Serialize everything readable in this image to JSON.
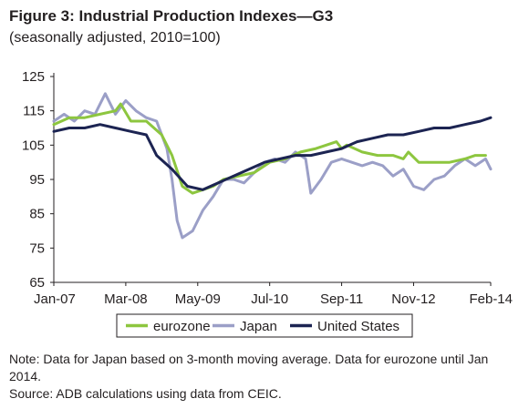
{
  "title": "Figure 3: Industrial Production Indexes—G3",
  "subtitle": "(seasonally adjusted, 2010=100)",
  "notes": [
    "Note: Data for Japan based on 3-month moving average. Data for eurozone until Jan 2014.",
    "Source: ADB calculations using data from CEIC."
  ],
  "colors": {
    "eurozone": "#8dc63f",
    "japan": "#9b9fc7",
    "united_states": "#1c2452",
    "axis": "#231f20"
  },
  "chart_data": {
    "type": "line",
    "x_unit": "month",
    "x_range": [
      "Jan-07",
      "Feb-14"
    ],
    "x_ticks": [
      "Jan-07",
      "Mar-08",
      "May-09",
      "Jul-10",
      "Sep-11",
      "Nov-12",
      "Feb-14"
    ],
    "y_ticks": [
      65,
      75,
      85,
      95,
      105,
      115,
      125
    ],
    "ylim": [
      65,
      125
    ],
    "grid": false,
    "legend_position": "bottom",
    "series": [
      {
        "name": "eurozone",
        "color": "#8dc63f",
        "points": [
          [
            "Jan-07",
            111
          ],
          [
            "Apr-07",
            113
          ],
          [
            "Jul-07",
            113
          ],
          [
            "Oct-07",
            114
          ],
          [
            "Jan-08",
            115
          ],
          [
            "Feb-08",
            117
          ],
          [
            "Apr-08",
            112
          ],
          [
            "Jul-08",
            112
          ],
          [
            "Oct-08",
            108
          ],
          [
            "Dec-08",
            102
          ],
          [
            "Feb-09",
            93
          ],
          [
            "Apr-09",
            91
          ],
          [
            "Jun-09",
            92
          ],
          [
            "Aug-09",
            93
          ],
          [
            "Oct-09",
            95
          ],
          [
            "Jan-10",
            96
          ],
          [
            "Apr-10",
            97
          ],
          [
            "Jul-10",
            100
          ],
          [
            "Oct-10",
            101
          ],
          [
            "Jan-11",
            103
          ],
          [
            "Apr-11",
            104
          ],
          [
            "Jun-11",
            105
          ],
          [
            "Aug-11",
            106
          ],
          [
            "Sep-11",
            104
          ],
          [
            "Oct-11",
            105
          ],
          [
            "Jan-12",
            103
          ],
          [
            "Apr-12",
            102
          ],
          [
            "Jul-12",
            102
          ],
          [
            "Sep-12",
            101
          ],
          [
            "Oct-12",
            103
          ],
          [
            "Dec-12",
            100
          ],
          [
            "Mar-13",
            100
          ],
          [
            "Jun-13",
            100
          ],
          [
            "Sep-13",
            101
          ],
          [
            "Nov-13",
            102
          ],
          [
            "Jan-14",
            102
          ]
        ]
      },
      {
        "name": "Japan",
        "color": "#9b9fc7",
        "points": [
          [
            "Jan-07",
            112
          ],
          [
            "Mar-07",
            114
          ],
          [
            "May-07",
            112
          ],
          [
            "Jul-07",
            115
          ],
          [
            "Sep-07",
            114
          ],
          [
            "Nov-07",
            120
          ],
          [
            "Jan-08",
            114
          ],
          [
            "Mar-08",
            118
          ],
          [
            "May-08",
            115
          ],
          [
            "Jul-08",
            113
          ],
          [
            "Sep-08",
            112
          ],
          [
            "Nov-08",
            104
          ],
          [
            "Dec-08",
            95
          ],
          [
            "Jan-09",
            83
          ],
          [
            "Feb-09",
            78
          ],
          [
            "Apr-09",
            80
          ],
          [
            "Jun-09",
            86
          ],
          [
            "Aug-09",
            90
          ],
          [
            "Oct-09",
            95
          ],
          [
            "Dec-09",
            95
          ],
          [
            "Feb-10",
            94
          ],
          [
            "Apr-10",
            97
          ],
          [
            "Jun-10",
            100
          ],
          [
            "Aug-10",
            101
          ],
          [
            "Oct-10",
            100
          ],
          [
            "Dec-10",
            103
          ],
          [
            "Feb-11",
            101
          ],
          [
            "Mar-11",
            91
          ],
          [
            "May-11",
            95
          ],
          [
            "Jul-11",
            100
          ],
          [
            "Sep-11",
            101
          ],
          [
            "Nov-11",
            100
          ],
          [
            "Jan-12",
            99
          ],
          [
            "Mar-12",
            100
          ],
          [
            "May-12",
            99
          ],
          [
            "Jul-12",
            96
          ],
          [
            "Sep-12",
            98
          ],
          [
            "Nov-12",
            93
          ],
          [
            "Jan-13",
            92
          ],
          [
            "Mar-13",
            95
          ],
          [
            "May-13",
            96
          ],
          [
            "Jul-13",
            99
          ],
          [
            "Sep-13",
            101
          ],
          [
            "Nov-13",
            99
          ],
          [
            "Jan-14",
            101
          ],
          [
            "Feb-14",
            98
          ]
        ]
      },
      {
        "name": "United States",
        "color": "#1c2452",
        "points": [
          [
            "Jan-07",
            109
          ],
          [
            "Apr-07",
            110
          ],
          [
            "Jul-07",
            110
          ],
          [
            "Oct-07",
            111
          ],
          [
            "Jan-08",
            110
          ],
          [
            "Apr-08",
            109
          ],
          [
            "Jul-08",
            108
          ],
          [
            "Sep-08",
            102
          ],
          [
            "Dec-08",
            98
          ],
          [
            "Mar-09",
            93
          ],
          [
            "Jun-09",
            92
          ],
          [
            "Sep-09",
            94
          ],
          [
            "Dec-09",
            96
          ],
          [
            "Mar-10",
            98
          ],
          [
            "Jun-10",
            100
          ],
          [
            "Sep-10",
            101
          ],
          [
            "Dec-10",
            102
          ],
          [
            "Mar-11",
            102
          ],
          [
            "Jun-11",
            103
          ],
          [
            "Sep-11",
            104
          ],
          [
            "Dec-11",
            106
          ],
          [
            "Mar-12",
            107
          ],
          [
            "Jun-12",
            108
          ],
          [
            "Sep-12",
            108
          ],
          [
            "Dec-12",
            109
          ],
          [
            "Mar-13",
            110
          ],
          [
            "Jun-13",
            110
          ],
          [
            "Sep-13",
            111
          ],
          [
            "Dec-13",
            112
          ],
          [
            "Feb-14",
            113
          ]
        ]
      }
    ]
  }
}
